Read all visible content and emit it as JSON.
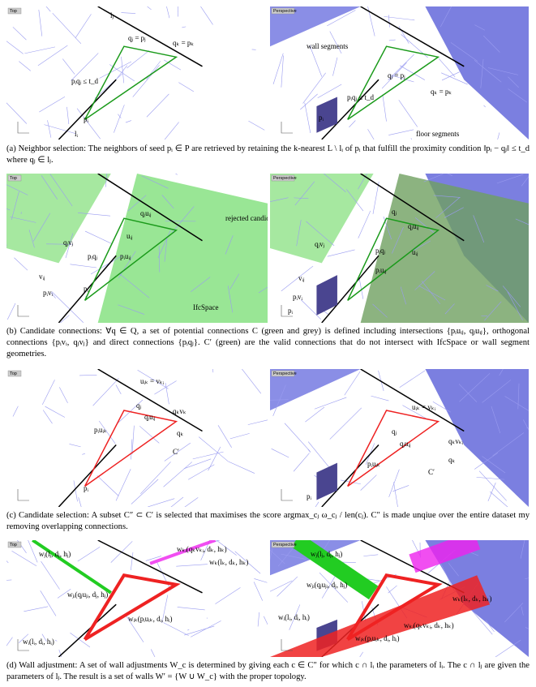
{
  "figures": [
    {
      "left": {
        "view": "Top",
        "labels": [
          "lⱼ",
          "qⱼ = pⱼ",
          "qₖ = pₖ",
          "pᵢqⱼ ≤ t_d",
          "pᵢ",
          "lᵢ"
        ]
      },
      "right": {
        "view": "Perspective",
        "labels": [
          "wall segments",
          "qⱼ = pⱼ",
          "qₖ = pₖ",
          "pᵢqⱼ ≤ t_d",
          "pᵢ",
          "floor segments"
        ]
      },
      "caption": "(a) Neighbor selection: The neighbors of seed pᵢ ∈ P are retrieved by retaining the k-nearest L \\ lᵢ of pᵢ that fulfill the proximity condition ‖pᵢ − qⱼ‖ ≤ t_d where qⱼ ∈ lⱼ."
    },
    {
      "left": {
        "view": "Top",
        "labels": [
          "qⱼuᵢⱼ",
          "uᵢⱼ",
          "qⱼvⱼ",
          "pᵢqⱼ",
          "pᵢuᵢⱼ",
          "vᵢⱼ",
          "pᵢvᵢ",
          "pᵢ",
          "rejected candidates",
          "IfcSpace"
        ]
      },
      "right": {
        "view": "Perspective",
        "labels": [
          "qⱼ",
          "qⱼuᵢⱼ",
          "qⱼvⱼ",
          "pᵢqⱼ",
          "uᵢⱼ",
          "pᵢuᵢⱼ",
          "vᵢⱼ",
          "pᵢvᵢ",
          "pᵢ"
        ]
      },
      "caption": "(b) Candidate connections: ∀q ∈ Q, a set of potential connections C (green and grey) is defined including intersections {pᵢuᵢⱼ, qⱼuᵢⱼ}, orthogonal connections {pᵢvᵢ, qⱼvⱼ} and direct connections {pᵢqⱼ}. C′ (green) are the valid connections that do not intersect with IfcSpace or wall segment geometries."
    },
    {
      "left": {
        "view": "Top",
        "labels": [
          "uᵢₖ = vₖᵢ",
          "qⱼ",
          "qⱼuᵢⱼ",
          "qₖvₖ",
          "qₖ",
          "pᵢuᵢₖ",
          "C′",
          "pᵢ"
        ]
      },
      "right": {
        "view": "Perspective",
        "labels": [
          "uᵢₖ = vₖᵢ",
          "qⱼ",
          "qⱼuᵢⱼ",
          "qₖvₖᵢ",
          "qₖ",
          "pᵢuᵢₖ",
          "C′",
          "pᵢ"
        ]
      },
      "caption": "(c) Candidate selection: A subset C″ ⊂ C′ is selected that maximises the score argmax_cⱼ ω_cⱼ / len(cⱼ). C″ is made unqiue over the entire dataset my removing overlapping connections."
    },
    {
      "left": {
        "view": "Top",
        "labels": [
          "wⱼ(lⱼ, dⱼ, hⱼ)",
          "wₖᵢ(qₖvₖᵢ, dₖ, hₖ)",
          "wₖ(lₖ, dₖ, hₖ)",
          "wⱼᵢ(qⱼuⱼᵢ, dⱼ, hⱼ)",
          "wᵢₖ(pᵢuᵢₖ, dᵢ, hᵢ)",
          "wᵢ(lᵢ, dᵢ, hᵢ)"
        ]
      },
      "right": {
        "view": "Perspective",
        "labels": [
          "wⱼ(lⱼ, dⱼ, hⱼ)",
          "wⱼᵢ(qⱼuⱼᵢ, dⱼ, hⱼ)",
          "wₖ(lₖ, dₖ, hₖ)",
          "wᵢ(lᵢ, dᵢ, hᵢ)",
          "wₖᵢ(qₖvₖᵢ, dₖ, hₖ)",
          "wᵢₖ(pᵢuᵢₖ, dᵢ, hᵢ)"
        ]
      },
      "caption": "(d) Wall adjustment: A set of wall adjustments W_c is determined by giving each c ∈ C″ for which c ∩ lᵢ the parameters of lᵢ. The c ∩ lⱼ are given the parameters of lⱼ. The result is a set of walls W′ = {W ∪ W_c} with the proper topology."
    }
  ]
}
